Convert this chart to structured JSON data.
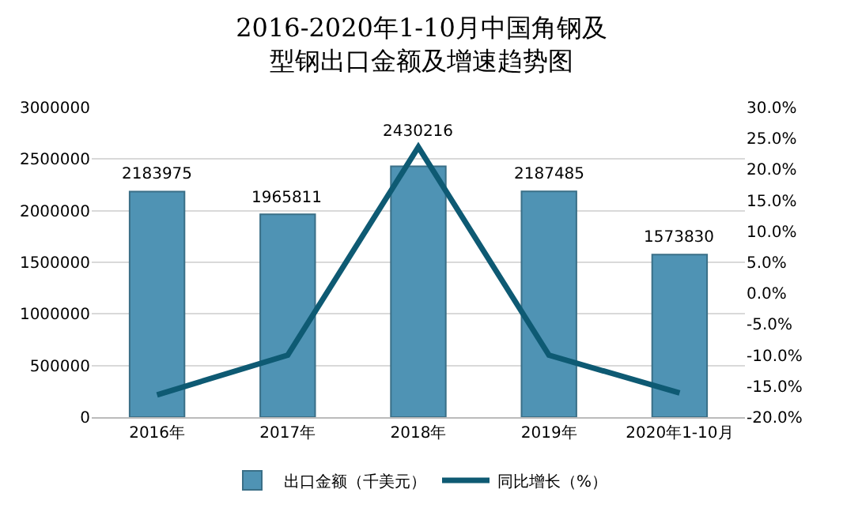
{
  "chart_data": {
    "type": "bar",
    "title": "2016-2020年1-10月中国角钢及型钢出口金额及增速趋势图",
    "categories": [
      "2016年",
      "2017年",
      "2018年",
      "2019年",
      "2020年1-10月"
    ],
    "series": [
      {
        "name": "出口金额（千美元）",
        "color": "#4f93b4",
        "values": [
          2183975,
          1965811,
          2430216,
          2187485,
          1573830
        ],
        "value_labels": [
          "2183975",
          "1965811",
          "2430216",
          "2187485",
          "1573830"
        ]
      },
      {
        "name": "同比增长（%）",
        "type": "line",
        "axis": "y2",
        "color": "#0e5a73",
        "values": [
          -16.4,
          -10.0,
          23.6,
          -10.0,
          -16.1
        ]
      }
    ],
    "ylim": [
      0,
      3000000
    ],
    "yticks": [
      0,
      500000,
      1000000,
      1500000,
      2000000,
      2500000,
      3000000
    ],
    "y2lim": [
      -20,
      30
    ],
    "y2ticks": [
      {
        "value": -20,
        "label": "-20.0%"
      },
      {
        "value": -15,
        "label": "-15.0%"
      },
      {
        "value": -10,
        "label": "-10.0%"
      },
      {
        "value": -5,
        "label": "-5.0%"
      },
      {
        "value": 0,
        "label": "0.0%"
      },
      {
        "value": 5,
        "label": "5.0%"
      },
      {
        "value": 10,
        "label": "10.0%"
      },
      {
        "value": 15,
        "label": "15.0%"
      },
      {
        "value": 20,
        "label": "20.0%"
      },
      {
        "value": 25,
        "label": "25.0%"
      },
      {
        "value": 30,
        "label": "30.0%"
      }
    ],
    "grid": "y",
    "legend": "bottom",
    "marker": "none",
    "line_style": "solid"
  }
}
